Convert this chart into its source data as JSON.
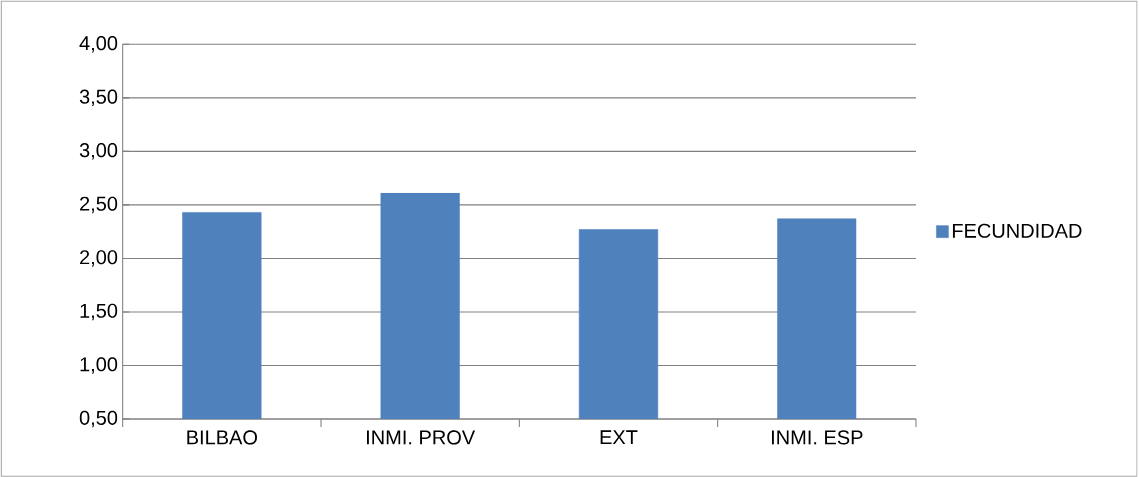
{
  "chart_data": {
    "type": "bar",
    "categories": [
      "BILBAO",
      "INMI. PROV",
      "EXT",
      "INMI. ESP"
    ],
    "series": [
      {
        "name": "FECUNDIDAD",
        "color": "#4f81bd",
        "values": [
          2.43,
          2.61,
          2.27,
          2.37
        ]
      }
    ],
    "ylim": [
      0.5,
      4.0
    ],
    "yticks": [
      {
        "value": 0.5,
        "label": "0,50"
      },
      {
        "value": 1.0,
        "label": "1,00"
      },
      {
        "value": 1.5,
        "label": "1,50"
      },
      {
        "value": 2.0,
        "label": "2,00"
      },
      {
        "value": 2.5,
        "label": "2,50"
      },
      {
        "value": 3.0,
        "label": "3,00"
      },
      {
        "value": 3.5,
        "label": "3,50"
      },
      {
        "value": 4.0,
        "label": "4,00"
      }
    ],
    "grid": "y",
    "legend": "right"
  }
}
